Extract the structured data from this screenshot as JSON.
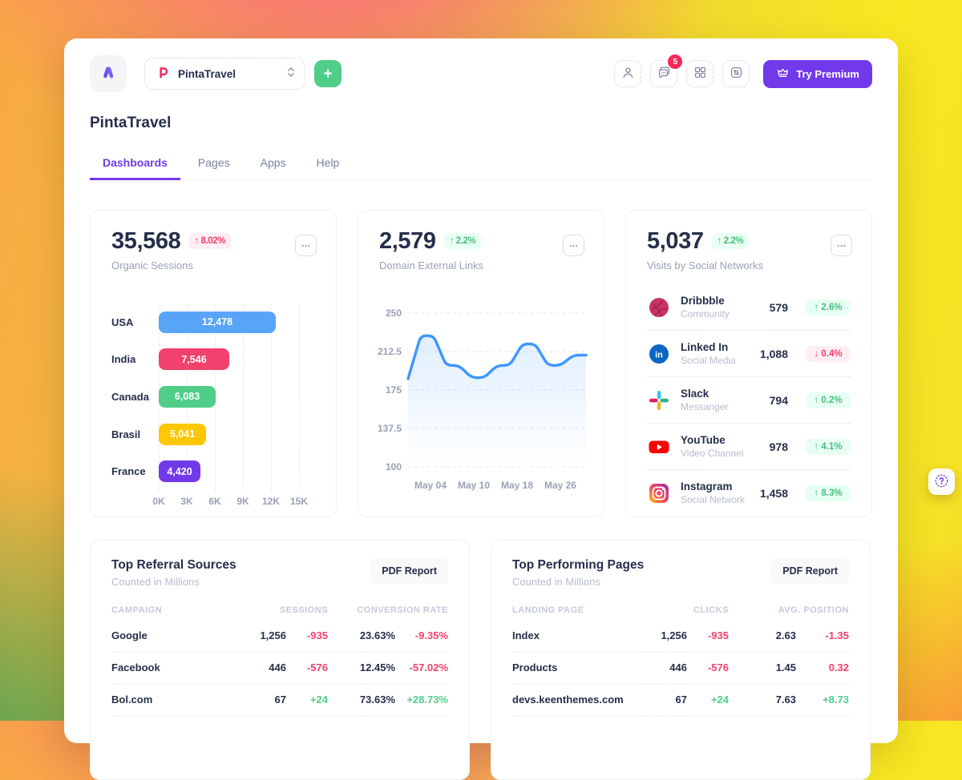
{
  "colors": {
    "purple": "#7239EA",
    "green": "#50CD89",
    "red": "#F1416C",
    "yellow": "#FFC700",
    "blue": "#3E97FF",
    "badge_red_bg": "#FFEEF3",
    "badge_green_bg": "#E8FFF3"
  },
  "topbar": {
    "workspace_label": "PintaTravel",
    "add_button_label": "+",
    "notification_count": "5",
    "premium_label": "Try Premium"
  },
  "page": {
    "title": "PintaTravel",
    "tabs": [
      {
        "label": "Dashboards",
        "active": true
      },
      {
        "label": "Pages",
        "active": false
      },
      {
        "label": "Apps",
        "active": false
      },
      {
        "label": "Help",
        "active": false
      }
    ]
  },
  "organic_sessions": {
    "value": "35,568",
    "badge": {
      "text": "8.02%",
      "direction": "up",
      "tone": "red"
    },
    "subtitle": "Organic Sessions",
    "chart_data": {
      "type": "bar",
      "orientation": "horizontal",
      "categories": [
        "USA",
        "India",
        "Canada",
        "Brasil",
        "France"
      ],
      "values": [
        12478,
        7546,
        6083,
        5041,
        4420
      ],
      "value_labels": [
        "12,478",
        "7,546",
        "6,083",
        "5,041",
        "4,420"
      ],
      "bar_colors": [
        "#58A5F8",
        "#F1416C",
        "#50CD89",
        "#FFC700",
        "#7239EA"
      ],
      "x_ticks": [
        "0K",
        "3K",
        "6K",
        "9K",
        "12K",
        "15K"
      ],
      "xlim": [
        0,
        15000
      ],
      "grid": "dashed-vertical"
    }
  },
  "domain_links": {
    "value": "2,579",
    "badge": {
      "text": "2.2%",
      "direction": "up",
      "tone": "green"
    },
    "subtitle": "Domain External Links",
    "chart_data": {
      "type": "area",
      "line_color": "#3E97FF",
      "y_ticks": [
        "250",
        "212.5",
        "175",
        "137.5",
        "100"
      ],
      "ylim": [
        100,
        250
      ],
      "x_ticks": [
        "May 04",
        "May 10",
        "May 18",
        "May 26"
      ],
      "values": [
        186,
        228,
        228,
        199,
        199,
        187,
        187,
        199,
        199,
        220,
        220,
        199,
        199,
        209,
        209
      ],
      "grid": "dashed-horizontal",
      "legend": "none"
    }
  },
  "social_visits": {
    "value": "5,037",
    "badge": {
      "text": "2.2%",
      "direction": "up",
      "tone": "green"
    },
    "subtitle": "Visits by Social Networks",
    "items": [
      {
        "icon": "dribbble-icon",
        "name": "Dribbble",
        "category": "Community",
        "value": "579",
        "delta": "2.6%",
        "direction": "up",
        "tone": "green"
      },
      {
        "icon": "linkedin-icon",
        "name": "Linked In",
        "category": "Social Media",
        "value": "1,088",
        "delta": "0.4%",
        "direction": "down",
        "tone": "red"
      },
      {
        "icon": "slack-icon",
        "name": "Slack",
        "category": "Messanger",
        "value": "794",
        "delta": "0.2%",
        "direction": "up",
        "tone": "green"
      },
      {
        "icon": "youtube-icon",
        "name": "YouTube",
        "category": "Video Channel",
        "value": "978",
        "delta": "4.1%",
        "direction": "up",
        "tone": "green"
      },
      {
        "icon": "instagram-icon",
        "name": "Instagram",
        "category": "Social Network",
        "value": "1,458",
        "delta": "8.3%",
        "direction": "up",
        "tone": "green"
      }
    ]
  },
  "referral_sources": {
    "title": "Top Referral Sources",
    "subtitle": "Counted in Millions",
    "button_label": "PDF Report",
    "chart_data": {
      "type": "table",
      "headers": [
        "CAMPAIGN",
        "SESSIONS",
        "CONVERSION RATE"
      ],
      "rows": [
        {
          "name": "Google",
          "v1": "1,256",
          "d1": "-935",
          "d1_tone": "red",
          "v2": "23.63%",
          "d2": "-9.35%",
          "d2_tone": "red"
        },
        {
          "name": "Facebook",
          "v1": "446",
          "d1": "-576",
          "d1_tone": "red",
          "v2": "12.45%",
          "d2": "-57.02%",
          "d2_tone": "red"
        },
        {
          "name": "Bol.com",
          "v1": "67",
          "d1": "+24",
          "d1_tone": "green",
          "v2": "73.63%",
          "d2": "+28.73%",
          "d2_tone": "green"
        }
      ]
    }
  },
  "performing_pages": {
    "title": "Top Performing Pages",
    "subtitle": "Counted in Millions",
    "button_label": "PDF Report",
    "chart_data": {
      "type": "table",
      "headers": [
        "LANDING PAGE",
        "CLICKS",
        "AVG. POSITION"
      ],
      "rows": [
        {
          "name": "Index",
          "v1": "1,256",
          "d1": "-935",
          "d1_tone": "red",
          "v2": "2.63",
          "d2": "-1.35",
          "d2_tone": "red"
        },
        {
          "name": "Products",
          "v1": "446",
          "d1": "-576",
          "d1_tone": "red",
          "v2": "1.45",
          "d2": "0.32",
          "d2_tone": "red"
        },
        {
          "name": "devs.keenthemes.com",
          "v1": "67",
          "d1": "+24",
          "d1_tone": "green",
          "v2": "7.63",
          "d2": "+8.73",
          "d2_tone": "green"
        }
      ]
    }
  }
}
